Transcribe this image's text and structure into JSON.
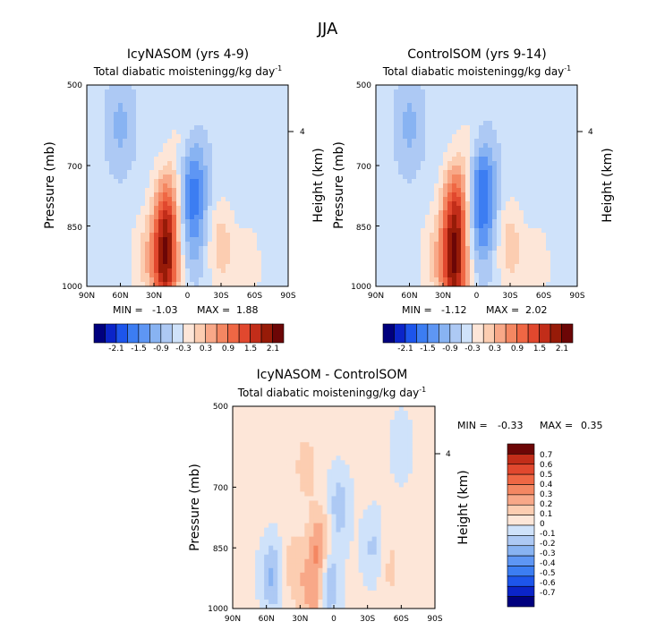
{
  "figure": {
    "title": "JJA"
  },
  "palette": {
    "cb_full": [
      "#00007e",
      "#0b24c8",
      "#1d55eb",
      "#3c7df2",
      "#5e96f4",
      "#88b3f2",
      "#adc9f4",
      "#cfe2fa",
      "#fde6d8",
      "#fccdb1",
      "#f8a888",
      "#f48762",
      "#ef6744",
      "#e1482e",
      "#c22d19",
      "#971b08",
      "#6c0606"
    ],
    "cb_diff": [
      "#00007e",
      "#0b24c8",
      "#1d55eb",
      "#3c7df2",
      "#5e96f4",
      "#88b3f2",
      "#adc9f4",
      "#cfe2fa",
      "#fde6d8",
      "#fccdb1",
      "#f8a888",
      "#f48762",
      "#ef6744",
      "#e1482e",
      "#c22d19",
      "#6c0606"
    ]
  },
  "chart_data": [
    {
      "type": "heatmap",
      "title": "IcyNASOM (yrs 4-9)",
      "subtitle": "Total diabatic moistening",
      "units": "g/kg day",
      "units_exp": "-1",
      "xlabel": "",
      "ylabel": "Pressure (mb)",
      "ylabel_right": "Height (km)",
      "x_ticks": [
        "90N",
        "60N",
        "30N",
        "0",
        "30S",
        "60S",
        "90S"
      ],
      "y_ticks": [
        500,
        700,
        850,
        1000
      ],
      "y_right_ticks": [
        "4"
      ],
      "ylim": [
        1000,
        500
      ],
      "stats": {
        "min_label": "MIN =",
        "min": "-1.03",
        "max_label": "MAX =",
        "max": "1.88"
      },
      "colorbar": {
        "labels": [
          "-2.1",
          "-1.5",
          "-0.9",
          "-0.3",
          "0.3",
          "0.9",
          "1.5",
          "2.1"
        ],
        "placement": "bottom"
      },
      "features": [
        {
          "lat": 20,
          "p": 980,
          "v": 1.8
        },
        {
          "lat": 20,
          "p": 870,
          "v": 1.3
        },
        {
          "lat": 18,
          "p": 800,
          "v": 0.9
        },
        {
          "lat": 40,
          "p": 930,
          "v": 0.5
        },
        {
          "lat": -5,
          "p": 740,
          "v": -1.0
        },
        {
          "lat": -5,
          "p": 860,
          "v": -0.6
        },
        {
          "lat": -30,
          "p": 900,
          "v": 0.7
        },
        {
          "lat": -55,
          "p": 950,
          "v": 0.4
        },
        {
          "lat": 5,
          "p": 650,
          "v": 0.3
        },
        {
          "lat": 60,
          "p": 600,
          "v": -0.5
        }
      ]
    },
    {
      "type": "heatmap",
      "title": "ControlSOM (yrs 9-14)",
      "subtitle": "Total diabatic moistening",
      "units": "g/kg day",
      "units_exp": "-1",
      "xlabel": "",
      "ylabel": "Pressure (mb)",
      "ylabel_right": "Height (km)",
      "x_ticks": [
        "90N",
        "60N",
        "30N",
        "0",
        "30S",
        "60S",
        "90S"
      ],
      "y_ticks": [
        500,
        700,
        850,
        1000
      ],
      "y_right_ticks": [
        "4"
      ],
      "ylim": [
        1000,
        500
      ],
      "stats": {
        "min_label": "MIN =",
        "min": "-1.12",
        "max_label": "MAX =",
        "max": "2.02"
      },
      "colorbar": {
        "labels": [
          "-2.1",
          "-1.5",
          "-0.9",
          "-0.3",
          "0.3",
          "0.9",
          "1.5",
          "2.1"
        ],
        "placement": "bottom"
      },
      "features": [
        {
          "lat": 20,
          "p": 980,
          "v": 2.0
        },
        {
          "lat": 20,
          "p": 860,
          "v": 1.4
        },
        {
          "lat": 18,
          "p": 780,
          "v": 1.0
        },
        {
          "lat": 40,
          "p": 930,
          "v": 0.5
        },
        {
          "lat": -5,
          "p": 740,
          "v": -1.1
        },
        {
          "lat": -5,
          "p": 860,
          "v": -0.7
        },
        {
          "lat": -30,
          "p": 900,
          "v": 0.7
        },
        {
          "lat": -55,
          "p": 950,
          "v": 0.4
        },
        {
          "lat": 5,
          "p": 650,
          "v": 0.3
        },
        {
          "lat": 60,
          "p": 600,
          "v": -0.5
        }
      ]
    },
    {
      "type": "heatmap",
      "title": "IcyNASOM - ControlSOM",
      "subtitle": "Total diabatic moistening",
      "units": "g/kg day",
      "units_exp": "-1",
      "xlabel": "",
      "ylabel": "Pressure (mb)",
      "ylabel_right": "Height (km)",
      "x_ticks": [
        "90N",
        "60N",
        "30N",
        "0",
        "30S",
        "60S",
        "90S"
      ],
      "y_ticks": [
        500,
        700,
        850,
        1000
      ],
      "y_right_ticks": [
        "4"
      ],
      "ylim": [
        1000,
        500
      ],
      "stats": {
        "min_label": "MIN =",
        "min": "-0.33",
        "max_label": "MAX =",
        "max": "0.35"
      },
      "colorbar": {
        "labels": [
          "0.7",
          "0.6",
          "0.5",
          "0.4",
          "0.3",
          "0.2",
          "0.1",
          "0",
          "-0.1",
          "-0.2",
          "-0.3",
          "-0.4",
          "-0.5",
          "-0.6",
          "-0.7"
        ],
        "placement": "right"
      },
      "features": [
        {
          "lat": 12,
          "p": 850,
          "v": 0.3
        },
        {
          "lat": 18,
          "p": 960,
          "v": 0.25
        },
        {
          "lat": 5,
          "p": 930,
          "v": -0.3
        },
        {
          "lat": -5,
          "p": 750,
          "v": -0.2
        },
        {
          "lat": 55,
          "p": 920,
          "v": -0.25
        },
        {
          "lat": 35,
          "p": 900,
          "v": 0.15
        },
        {
          "lat": -35,
          "p": 850,
          "v": -0.15
        },
        {
          "lat": -50,
          "p": 900,
          "v": 0.1
        },
        {
          "lat": 25,
          "p": 650,
          "v": 0.12
        },
        {
          "lat": -60,
          "p": 600,
          "v": -0.1
        }
      ]
    }
  ]
}
